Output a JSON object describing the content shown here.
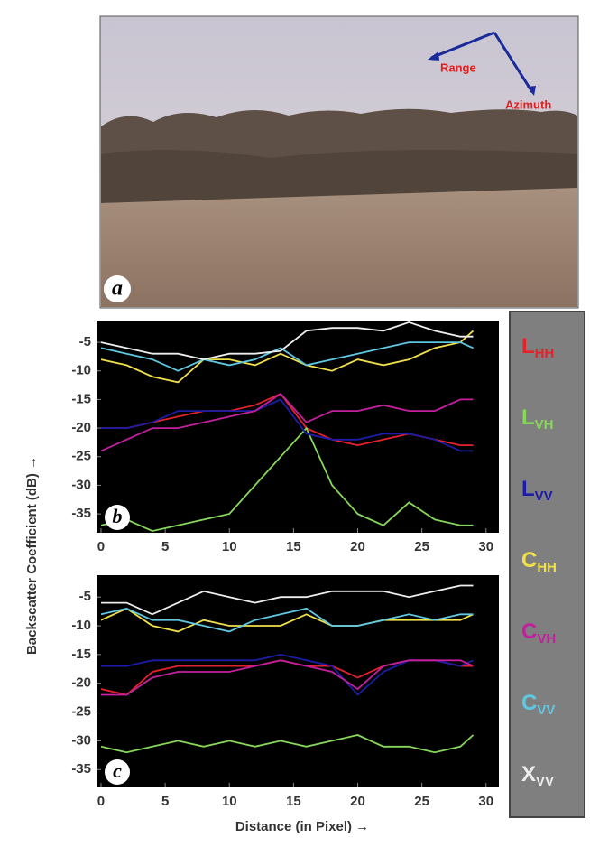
{
  "photo": {
    "label": "a",
    "annotations": [
      "Range",
      "Azimuth"
    ]
  },
  "chart_data": [
    {
      "type": "line",
      "panel_label": "b",
      "ylabel": "Backscatter  Coefficient (dB) →",
      "x": [
        0,
        2,
        4,
        6,
        8,
        10,
        12,
        14,
        16,
        18,
        20,
        22,
        24,
        26,
        28,
        29
      ],
      "xlim": [
        -0.35,
        31
      ],
      "ylim": [
        -38.3,
        -1.2
      ],
      "xticks": [
        0,
        5,
        10,
        15,
        20,
        25,
        30
      ],
      "yticks": [
        -5,
        -10,
        -15,
        -20,
        -25,
        -30,
        -35
      ],
      "series": [
        {
          "name": "LHH",
          "color": "#e3222c",
          "values": [
            -20,
            -20,
            -19,
            -18,
            -17,
            -17,
            -16,
            -14,
            -20,
            -22,
            -23,
            -22,
            -21,
            -22,
            -23,
            -23
          ]
        },
        {
          "name": "LVH",
          "color": "#86d75a",
          "values": [
            -37,
            -36,
            -38,
            -37,
            -36,
            -35,
            -30,
            -25,
            -20,
            -30,
            -35,
            -37,
            -33,
            -36,
            -37,
            -37
          ]
        },
        {
          "name": "LVV",
          "color": "#1c1ca8",
          "values": [
            -20,
            -20,
            -19,
            -17,
            -17,
            -17,
            -17,
            -15,
            -21,
            -22,
            -22,
            -21,
            -21,
            -22,
            -24,
            -24
          ]
        },
        {
          "name": "CHH",
          "color": "#f0e04a",
          "values": [
            -8,
            -9,
            -11,
            -12,
            -8,
            -8,
            -9,
            -7,
            -9,
            -10,
            -8,
            -9,
            -8,
            -6,
            -5,
            -3
          ]
        },
        {
          "name": "CVH",
          "color": "#c41f9e",
          "values": [
            -24,
            -22,
            -20,
            -20,
            -19,
            -18,
            -17,
            -14,
            -19,
            -17,
            -17,
            -16,
            -17,
            -17,
            -15,
            -15
          ]
        },
        {
          "name": "CVV",
          "color": "#5ec8e2",
          "values": [
            -6,
            -7,
            -8,
            -10,
            -8,
            -9,
            -8,
            -6,
            -9,
            -8,
            -7,
            -6,
            -5,
            -5,
            -5,
            -6
          ]
        },
        {
          "name": "XVV",
          "color": "#eeeeee",
          "values": [
            -5,
            -6,
            -7,
            -7,
            -8,
            -7,
            -7,
            -6.5,
            -3,
            -2.5,
            -2.5,
            -3,
            -1.5,
            -3,
            -4,
            -4
          ]
        }
      ]
    },
    {
      "type": "line",
      "panel_label": "c",
      "xlabel": "Distance (in Pixel) →",
      "x": [
        0,
        2,
        4,
        6,
        8,
        10,
        12,
        14,
        16,
        18,
        20,
        22,
        24,
        26,
        28,
        29
      ],
      "xlim": [
        -0.35,
        31
      ],
      "ylim": [
        -38.1,
        -1.2
      ],
      "xticks": [
        0,
        5,
        10,
        15,
        20,
        25,
        30
      ],
      "yticks": [
        -5,
        -10,
        -15,
        -20,
        -25,
        -30,
        -35
      ],
      "series": [
        {
          "name": "LHH",
          "color": "#e3222c",
          "values": [
            -21,
            -22,
            -18,
            -17,
            -17,
            -17,
            -17,
            -16,
            -17,
            -17,
            -19,
            -17,
            -16,
            -16,
            -17,
            -17
          ]
        },
        {
          "name": "LVH",
          "color": "#86d75a",
          "values": [
            -31,
            -32,
            -31,
            -30,
            -31,
            -30,
            -31,
            -30,
            -31,
            -30,
            -29,
            -31,
            -31,
            -32,
            -31,
            -29
          ]
        },
        {
          "name": "LVV",
          "color": "#1c1ca8",
          "values": [
            -17,
            -17,
            -16,
            -16,
            -16,
            -16,
            -16,
            -15,
            -16,
            -17,
            -22,
            -18,
            -16,
            -16,
            -17,
            -16
          ]
        },
        {
          "name": "CHH",
          "color": "#f0e04a",
          "values": [
            -9,
            -7,
            -10,
            -11,
            -9,
            -10,
            -10,
            -10,
            -8,
            -10,
            -10,
            -9,
            -9,
            -9,
            -9,
            -8
          ]
        },
        {
          "name": "CVH",
          "color": "#c41f9e",
          "values": [
            -22,
            -22,
            -19,
            -18,
            -18,
            -18,
            -17,
            -16,
            -17,
            -18,
            -21,
            -17,
            -16,
            -16,
            -16,
            -17
          ]
        },
        {
          "name": "CVV",
          "color": "#5ec8e2",
          "values": [
            -8,
            -7,
            -9,
            -9,
            -10,
            -11,
            -9,
            -8,
            -7,
            -10,
            -10,
            -9,
            -8,
            -9,
            -8,
            -8
          ]
        },
        {
          "name": "XVV",
          "color": "#eeeeee",
          "values": [
            -6,
            -6,
            -8,
            -6,
            -4,
            -5,
            -6,
            -5,
            -5,
            -4,
            -4,
            -4,
            -5,
            -4,
            -3,
            -3
          ]
        }
      ]
    }
  ]
}
